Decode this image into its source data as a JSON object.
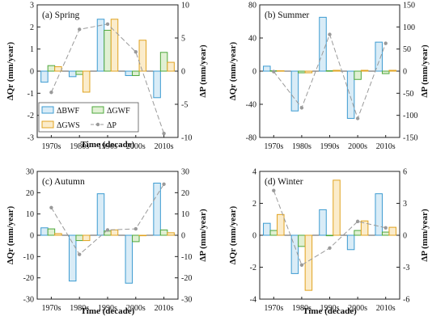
{
  "colors": {
    "BWF": {
      "stroke": "#3c9bd1",
      "fill": "#d9ecf7"
    },
    "GWF": {
      "stroke": "#4ea83c",
      "fill": "#e0f0d3"
    },
    "GWS": {
      "stroke": "#e0a320",
      "fill": "#fbeccb"
    },
    "dP": {
      "stroke": "#9a9a9a"
    }
  },
  "legend": [
    {
      "key": "BWF",
      "label": "ΔBWF",
      "kind": "bar"
    },
    {
      "key": "GWF",
      "label": "ΔGWF",
      "kind": "bar"
    },
    {
      "key": "GWS",
      "label": "ΔGWS",
      "kind": "bar"
    },
    {
      "key": "dP",
      "label": "ΔP",
      "kind": "line"
    }
  ],
  "chart_data": [
    {
      "type": "bar",
      "title": "(a) Spring",
      "categories": [
        "1970s",
        "1980s",
        "1990s",
        "2000s",
        "2010s"
      ],
      "xlabel": "Time (decade)",
      "ylabel": "ΔQr (mm/year)",
      "y2label": "ΔP (mm/year)",
      "ylim": [
        -3,
        3
      ],
      "yticks": [
        -3,
        -2,
        -1,
        0,
        1,
        2,
        3
      ],
      "y2lim": [
        -10,
        10
      ],
      "y2ticks": [
        -10,
        -5,
        0,
        5,
        10
      ],
      "series": [
        {
          "name": "ΔBWF",
          "key": "BWF",
          "values": [
            -0.5,
            -0.25,
            2.35,
            -0.2,
            -1.2
          ]
        },
        {
          "name": "ΔGWF",
          "key": "GWF",
          "values": [
            0.25,
            -0.15,
            1.85,
            -0.2,
            0.85
          ]
        },
        {
          "name": "ΔGWS",
          "key": "GWS",
          "values": [
            0.2,
            -0.95,
            2.35,
            1.4,
            0.4
          ]
        },
        {
          "name": "ΔP",
          "key": "dP",
          "axis": "right",
          "values": [
            -3.2,
            6.3,
            7.1,
            2.9,
            -9.4
          ]
        }
      ]
    },
    {
      "type": "bar",
      "title": "(b) Summer",
      "categories": [
        "1970s",
        "1980s",
        "1990s",
        "2000s",
        "2010s"
      ],
      "xlabel": "",
      "ylabel": "ΔQr (mm/year)",
      "y2label": "ΔP (mm/year)",
      "ylim": [
        -80,
        80
      ],
      "yticks": [
        -80,
        -40,
        0,
        40,
        80
      ],
      "y2lim": [
        -150,
        150
      ],
      "y2ticks": [
        -150,
        -100,
        -50,
        0,
        50,
        100,
        150
      ],
      "series": [
        {
          "name": "ΔBWF",
          "key": "BWF",
          "values": [
            6,
            -48,
            65,
            -57,
            35
          ]
        },
        {
          "name": "ΔGWF",
          "key": "GWF",
          "values": [
            0.5,
            -2,
            0.5,
            -10,
            -3
          ]
        },
        {
          "name": "ΔGWS",
          "key": "GWS",
          "values": [
            0.5,
            -2,
            1,
            1,
            1
          ]
        },
        {
          "name": "ΔP",
          "key": "dP",
          "axis": "right",
          "values": [
            -1,
            -83,
            83,
            -107,
            63
          ]
        }
      ]
    },
    {
      "type": "bar",
      "title": "(c) Autumn",
      "categories": [
        "1970s",
        "1980s",
        "1990s",
        "2000s",
        "2010s"
      ],
      "xlabel": "Time (decade)",
      "ylabel": "ΔQr (mm/year)",
      "y2label": "ΔP (mm/year)",
      "ylim": [
        -30,
        30
      ],
      "yticks": [
        -30,
        -20,
        -10,
        0,
        10,
        20,
        30
      ],
      "y2lim": [
        -30,
        30
      ],
      "y2ticks": [
        -30,
        -20,
        -10,
        0,
        10,
        20,
        30
      ],
      "series": [
        {
          "name": "ΔBWF",
          "key": "BWF",
          "values": [
            3.5,
            -21.5,
            19.5,
            -22.5,
            24.5
          ]
        },
        {
          "name": "ΔGWF",
          "key": "GWF",
          "values": [
            3,
            -2.5,
            2,
            -3,
            2.5
          ]
        },
        {
          "name": "ΔGWS",
          "key": "GWS",
          "values": [
            0.8,
            -2.5,
            2.5,
            0,
            1.2
          ]
        },
        {
          "name": "ΔP",
          "key": "dP",
          "axis": "right",
          "values": [
            13,
            -9,
            2.5,
            3,
            24
          ]
        }
      ]
    },
    {
      "type": "bar",
      "title": "(d) Winter",
      "categories": [
        "1970s",
        "1980s",
        "1990s",
        "2000s",
        "2010s"
      ],
      "xlabel": "Time (decade)",
      "ylabel": "ΔQr (mm/year)",
      "y2label": "ΔP (mm/year)",
      "ylim": [
        -4,
        4
      ],
      "yticks": [
        -4,
        -2,
        0,
        2,
        4
      ],
      "y2lim": [
        -6,
        6
      ],
      "y2ticks": [
        -6,
        -3,
        0,
        3,
        6
      ],
      "series": [
        {
          "name": "ΔBWF",
          "key": "BWF",
          "values": [
            0.75,
            -2.4,
            1.6,
            -0.9,
            2.6
          ]
        },
        {
          "name": "ΔGWF",
          "key": "GWF",
          "values": [
            0.3,
            -0.7,
            0,
            0.3,
            0.2
          ]
        },
        {
          "name": "ΔGWS",
          "key": "GWS",
          "values": [
            1.3,
            -3.45,
            3.45,
            0.9,
            0.5
          ]
        },
        {
          "name": "ΔP",
          "key": "dP",
          "axis": "right",
          "values": [
            4.2,
            -2.8,
            -1.2,
            1.3,
            0.7
          ]
        }
      ]
    }
  ]
}
